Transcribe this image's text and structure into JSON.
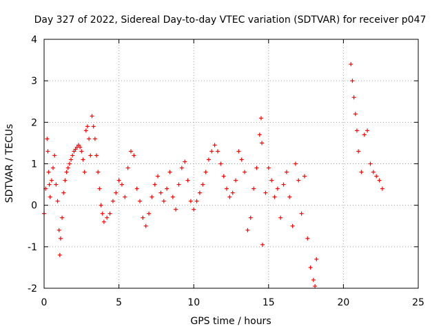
{
  "chart_data": {
    "type": "scatter",
    "title": "Day 327 of 2022, Sidereal Day-to-day VTEC variation (SDTVAR) for receiver p047",
    "xlabel": "GPS time / hours",
    "ylabel": "SDTVAR / TECUs",
    "xlim": [
      0,
      25
    ],
    "ylim": [
      -2,
      4
    ],
    "xticks": [
      0,
      5,
      10,
      15,
      20,
      25
    ],
    "yticks": [
      -2,
      -1,
      0,
      1,
      2,
      3,
      4
    ],
    "grid": true,
    "marker": "plus",
    "color": "#ff0000",
    "x": [
      0.0,
      0.1,
      0.2,
      0.25,
      0.3,
      0.35,
      0.4,
      0.5,
      0.6,
      0.7,
      0.8,
      0.9,
      1.0,
      1.05,
      1.1,
      1.2,
      1.3,
      1.4,
      1.5,
      1.6,
      1.7,
      1.8,
      1.9,
      2.0,
      2.1,
      2.2,
      2.3,
      2.4,
      2.5,
      2.6,
      2.7,
      2.8,
      2.9,
      3.0,
      3.1,
      3.2,
      3.3,
      3.4,
      3.5,
      3.6,
      3.7,
      3.8,
      3.9,
      4.0,
      4.2,
      4.4,
      4.6,
      4.8,
      5.0,
      5.2,
      5.4,
      5.6,
      5.8,
      6.0,
      6.2,
      6.4,
      6.6,
      6.8,
      7.0,
      7.2,
      7.4,
      7.6,
      7.8,
      8.0,
      8.2,
      8.4,
      8.6,
      8.8,
      9.0,
      9.2,
      9.4,
      9.6,
      9.8,
      10.0,
      10.2,
      10.4,
      10.6,
      10.8,
      11.0,
      11.2,
      11.4,
      11.6,
      11.8,
      12.0,
      12.2,
      12.4,
      12.6,
      12.8,
      13.0,
      13.2,
      13.4,
      13.6,
      13.8,
      14.0,
      14.2,
      14.4,
      14.5,
      14.55,
      14.6,
      14.8,
      15.0,
      15.2,
      15.4,
      15.6,
      15.8,
      16.0,
      16.2,
      16.4,
      16.6,
      16.8,
      17.0,
      17.2,
      17.4,
      17.6,
      17.8,
      18.0,
      18.1,
      18.2,
      20.5,
      20.6,
      20.7,
      20.8,
      20.9,
      21.0,
      21.2,
      21.4,
      21.6,
      21.8,
      22.0,
      22.2,
      22.4,
      22.6
    ],
    "y": [
      -0.2,
      0.4,
      1.6,
      1.3,
      0.8,
      0.5,
      0.2,
      0.6,
      0.9,
      1.2,
      0.5,
      0.1,
      -0.6,
      -1.2,
      -0.8,
      -0.3,
      0.3,
      0.6,
      0.8,
      0.9,
      1.0,
      1.1,
      1.2,
      1.3,
      1.35,
      1.4,
      1.45,
      1.4,
      1.3,
      1.1,
      0.8,
      1.8,
      1.9,
      1.6,
      1.2,
      2.15,
      1.9,
      1.6,
      1.2,
      0.8,
      0.4,
      0.0,
      -0.2,
      -0.4,
      -0.3,
      -0.2,
      0.1,
      0.3,
      0.6,
      0.5,
      0.2,
      0.9,
      1.3,
      1.2,
      0.4,
      0.1,
      -0.3,
      -0.5,
      -0.2,
      0.2,
      0.5,
      0.7,
      0.3,
      0.1,
      0.4,
      0.8,
      0.2,
      -0.1,
      0.5,
      0.9,
      1.05,
      0.6,
      0.1,
      -0.1,
      0.1,
      0.3,
      0.5,
      0.8,
      1.1,
      1.3,
      1.45,
      1.3,
      1.0,
      0.7,
      0.4,
      0.2,
      0.3,
      0.6,
      1.3,
      1.1,
      0.8,
      -0.6,
      -0.3,
      0.4,
      0.9,
      1.7,
      2.1,
      1.5,
      -0.95,
      0.3,
      0.9,
      0.6,
      0.2,
      0.4,
      -0.3,
      0.5,
      0.8,
      0.2,
      -0.5,
      1.0,
      0.6,
      -0.2,
      0.7,
      -0.8,
      -1.5,
      -1.8,
      -1.95,
      -1.3,
      3.4,
      3.0,
      2.6,
      2.2,
      1.8,
      1.3,
      0.8,
      1.7,
      1.8,
      1.0,
      0.8,
      0.7,
      0.6,
      0.4
    ]
  }
}
